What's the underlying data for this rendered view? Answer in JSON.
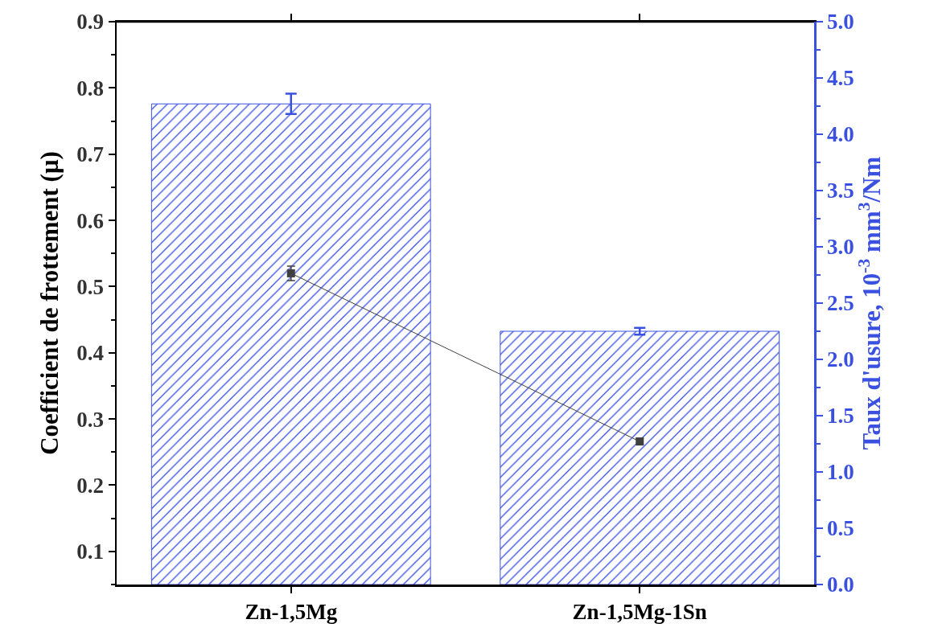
{
  "chart_data": {
    "type": "bar",
    "categories": [
      "Zn-1,5Mg",
      "Zn-1,5Mg-1Sn"
    ],
    "ylabel": "Coefficient de frottement (μ)",
    "y2label": "Taux d'usure, 10$^{-3}$ mm$^{3}$/Nm",
    "ylim": [
      0.05,
      0.9
    ],
    "yticks": [
      0.1,
      0.2,
      0.3,
      0.4,
      0.5,
      0.6,
      0.7,
      0.8,
      0.9
    ],
    "y2lim": [
      0,
      5
    ],
    "y2ticks": [
      {
        "value": 0,
        "label": "0.0"
      },
      0.5,
      {
        "value": 1,
        "label": "1.0"
      },
      1.5,
      {
        "value": 2,
        "label": "2.0"
      },
      2.5,
      {
        "value": 3,
        "label": "3.0"
      },
      3.5,
      {
        "value": 4,
        "label": "4.0"
      },
      4.5,
      {
        "value": 5,
        "label": "5.0"
      }
    ],
    "series": [
      {
        "axis": "y2",
        "color": "#3a50e0",
        "values": [
          4.27,
          2.25
        ],
        "errors": [
          0.09,
          0.03
        ]
      },
      {
        "type": "line",
        "color": "#404040",
        "values": [
          0.52,
          0.266
        ],
        "errors": [
          0.011,
          0.005
        ],
        "marker": "square"
      }
    ],
    "grid": false
  }
}
